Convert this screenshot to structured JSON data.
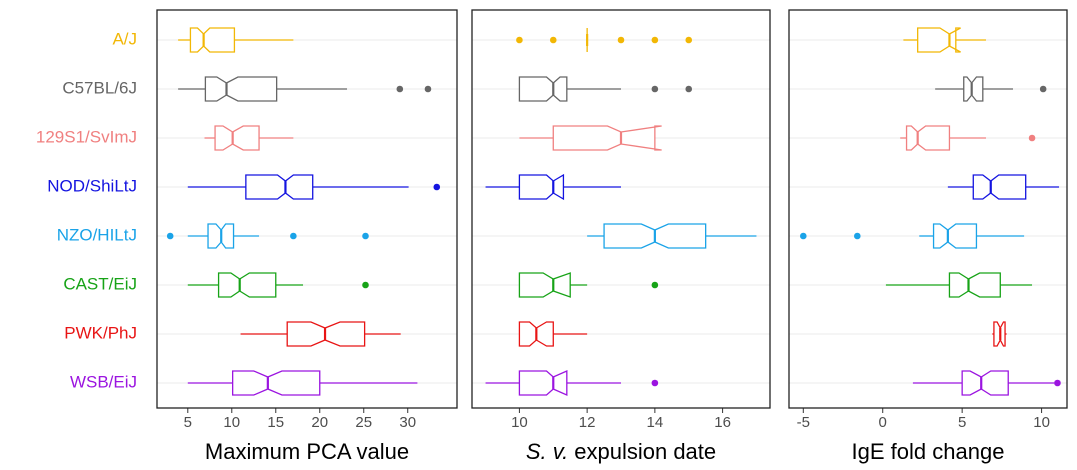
{
  "chart_data": [
    {
      "type": "box",
      "xlabel": "Maximum PCA value",
      "xlim": [
        1.5,
        35.6
      ],
      "xticks": [
        5,
        10,
        15,
        20,
        25,
        30
      ],
      "categories": [
        "A/J",
        "C57BL/6J",
        "129S1/SvImJ",
        "NOD/ShiLtJ",
        "NZO/HILtJ",
        "CAST/EiJ",
        "PWK/PhJ",
        "WSB/EiJ"
      ],
      "colors": [
        "#f2b705",
        "#666666",
        "#f08080",
        "#1414e0",
        "#1aa3e8",
        "#17a317",
        "#e81414",
        "#9b14e0"
      ],
      "boxes": [
        {
          "min": 3.9,
          "q1": 5.3,
          "median": 6.8,
          "q3": 10.3,
          "max": 17,
          "notch": [
            6.1,
            7.5
          ],
          "outliers": []
        },
        {
          "min": 3.9,
          "q1": 7.0,
          "median": 9.4,
          "q3": 15.1,
          "max": 23.1,
          "notch": [
            8.3,
            10.7
          ],
          "outliers": [
            29.1,
            32.3
          ]
        },
        {
          "min": 6.9,
          "q1": 8.1,
          "median": 10.1,
          "q3": 13.1,
          "max": 17,
          "notch": [
            9.0,
            11.3
          ],
          "outliers": []
        },
        {
          "min": 5,
          "q1": 11.6,
          "median": 16.1,
          "q3": 19.2,
          "max": 30.1,
          "notch": [
            15.2,
            17.0
          ],
          "outliers": [
            33.3
          ]
        },
        {
          "min": 5,
          "q1": 7.3,
          "median": 8.8,
          "q3": 10.2,
          "max": 13.1,
          "notch": [
            8.2,
            9.3
          ],
          "outliers": [
            3.0,
            17,
            25.2
          ]
        },
        {
          "min": 5,
          "q1": 8.5,
          "median": 10.9,
          "q3": 15,
          "max": 18.1,
          "notch": [
            9.9,
            12.0
          ],
          "outliers": [
            25.2
          ]
        },
        {
          "min": 11,
          "q1": 16.3,
          "median": 20.6,
          "q3": 25.1,
          "max": 29.2,
          "notch": [
            19.0,
            22.3
          ],
          "outliers": []
        },
        {
          "min": 5,
          "q1": 10.1,
          "median": 14.1,
          "q3": 20,
          "max": 31.1,
          "notch": [
            12.5,
            15.7
          ],
          "outliers": []
        }
      ]
    },
    {
      "type": "box",
      "xlabel": [
        {
          "text": "S. v.",
          "italic": true
        },
        {
          "text": "expulsion date"
        }
      ],
      "xlim": [
        8.6,
        17.4
      ],
      "xticks": [
        10,
        12,
        14,
        16
      ],
      "boxes": [
        {
          "min": 12,
          "q1": 12,
          "median": 12,
          "q3": 12,
          "max": 12,
          "notch": [
            12,
            12
          ],
          "outliers": [
            10,
            11,
            13,
            14,
            15
          ]
        },
        {
          "min": 10,
          "q1": 10,
          "median": 11,
          "q3": 11.4,
          "max": 13,
          "notch": [
            10.8,
            11.2
          ],
          "outliers": [
            14,
            15
          ]
        },
        {
          "min": 10,
          "q1": 11,
          "median": 13,
          "q3": 14,
          "max": 14,
          "notch": [
            12.6,
            14.2
          ],
          "outliers": []
        },
        {
          "min": 9,
          "q1": 10,
          "median": 11,
          "q3": 11.3,
          "max": 13,
          "notch": [
            10.8,
            11.3
          ],
          "outliers": []
        },
        {
          "min": 12,
          "q1": 12.5,
          "median": 14,
          "q3": 15.5,
          "max": 17,
          "notch": [
            13.6,
            14.4
          ],
          "outliers": []
        },
        {
          "min": 10,
          "q1": 10,
          "median": 11,
          "q3": 11.5,
          "max": 12,
          "notch": [
            10.7,
            11.5
          ],
          "outliers": [
            14
          ]
        },
        {
          "min": 10,
          "q1": 10,
          "median": 10.5,
          "q3": 11,
          "max": 12,
          "notch": [
            10.3,
            10.8
          ],
          "outliers": []
        },
        {
          "min": 9,
          "q1": 10,
          "median": 11,
          "q3": 11.4,
          "max": 13,
          "notch": [
            10.8,
            11.4
          ],
          "outliers": [
            14
          ]
        }
      ]
    },
    {
      "type": "box",
      "xlabel": "IgE fold change",
      "xlim": [
        -5.9,
        11.6
      ],
      "xticks": [
        -5,
        0,
        5,
        10
      ],
      "boxes": [
        {
          "min": 1.3,
          "q1": 2.2,
          "median": 4.2,
          "q3": 4.6,
          "max": 6.5,
          "notch": [
            3.6,
            4.9
          ],
          "outliers": []
        },
        {
          "min": 3.3,
          "q1": 5.1,
          "median": 5.6,
          "q3": 6.3,
          "max": 8.2,
          "notch": [
            5.3,
            5.9
          ],
          "outliers": [
            10.1
          ]
        },
        {
          "min": 1.1,
          "q1": 1.5,
          "median": 2.2,
          "q3": 4.2,
          "max": 6.5,
          "notch": [
            1.8,
            2.7
          ],
          "outliers": [
            9.4
          ]
        },
        {
          "min": 4.1,
          "q1": 5.7,
          "median": 6.8,
          "q3": 9.0,
          "max": 11.1,
          "notch": [
            6.3,
            7.3
          ],
          "outliers": []
        },
        {
          "min": 2.3,
          "q1": 3.2,
          "median": 4.1,
          "q3": 5.9,
          "max": 8.9,
          "notch": [
            3.6,
            4.6
          ],
          "outliers": [
            -5.0,
            -1.6
          ]
        },
        {
          "min": 0.2,
          "q1": 4.2,
          "median": 5.4,
          "q3": 7.4,
          "max": 9.4,
          "notch": [
            4.8,
            6.1
          ],
          "outliers": []
        },
        {
          "min": 6.9,
          "q1": 7.0,
          "median": 7.4,
          "q3": 7.7,
          "max": 7.8,
          "notch": [
            7.2,
            7.6
          ],
          "outliers": []
        },
        {
          "min": 1.9,
          "q1": 5.0,
          "median": 6.2,
          "q3": 7.9,
          "max": 10.8,
          "notch": [
            5.5,
            6.8
          ],
          "outliers": [
            11.0
          ]
        }
      ]
    }
  ]
}
